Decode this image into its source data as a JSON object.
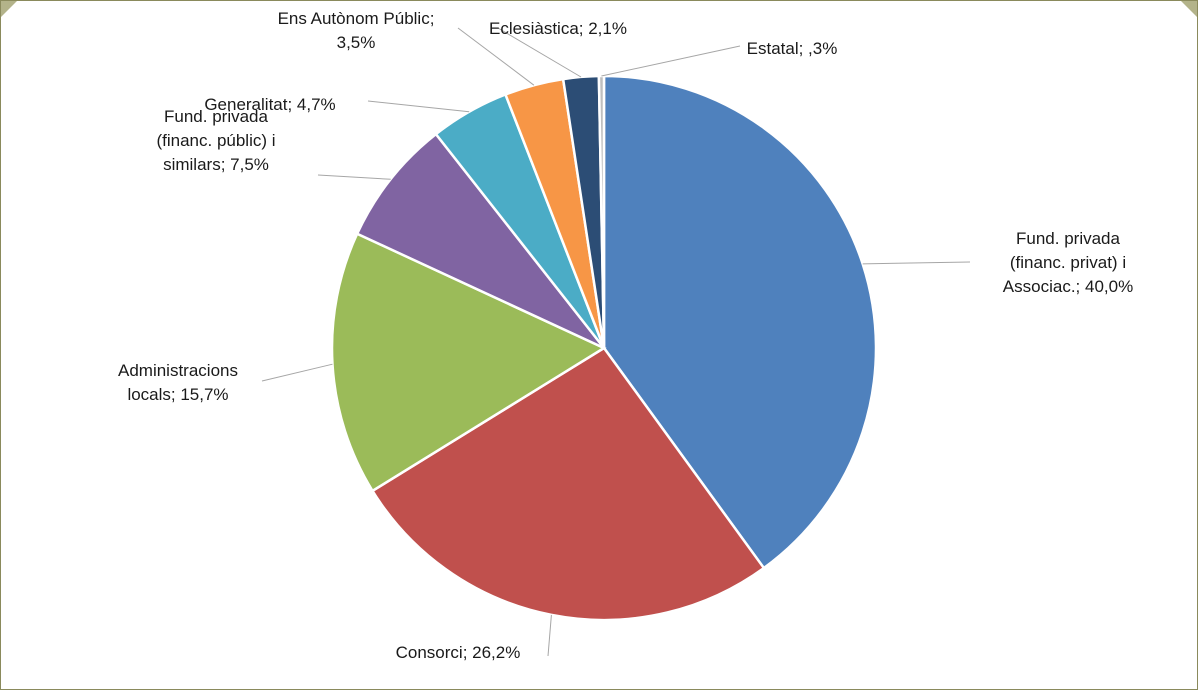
{
  "chart_data": {
    "type": "pie",
    "title": "",
    "legend": "none",
    "slices": [
      {
        "lines": [
          "Fund. privada",
          "(financ. privat) i",
          "Associac.; 40,0%"
        ],
        "value": 40.0,
        "color": "#4f81bd"
      },
      {
        "lines": [
          "Consorci; 26,2%"
        ],
        "value": 26.2,
        "color": "#c0504d"
      },
      {
        "lines": [
          "Administracions",
          "locals; 15,7%"
        ],
        "value": 15.7,
        "color": "#9bbb59"
      },
      {
        "lines": [
          "Fund. privada",
          "(financ. públic) i",
          "similars; 7,5%"
        ],
        "value": 7.5,
        "color": "#8064a2"
      },
      {
        "lines": [
          "Generalitat; 4,7%"
        ],
        "value": 4.7,
        "color": "#4bacc6"
      },
      {
        "lines": [
          "Ens Autònom Públic;",
          "3,5%"
        ],
        "value": 3.5,
        "color": "#f79646"
      },
      {
        "lines": [
          "Eclesiàstica; 2,1%"
        ],
        "value": 2.1,
        "color": "#2c4d75"
      },
      {
        "lines": [
          "Estatal; ,3%"
        ],
        "value": 0.3,
        "color": "#bfbfbf"
      }
    ]
  }
}
